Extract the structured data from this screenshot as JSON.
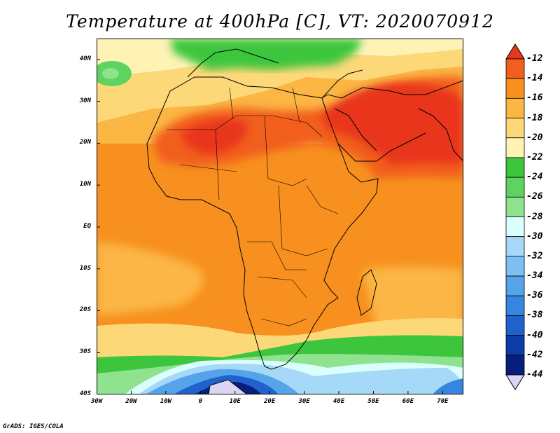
{
  "title": "Temperature at 400hPa [C], VT: 2020070912",
  "credit": "GrADS: IGES/COLA",
  "map": {
    "lon_range": [
      -30,
      76
    ],
    "lat_range": [
      -40,
      45
    ],
    "lat_ticks": [
      {
        "value": 40,
        "label": "40N"
      },
      {
        "value": 30,
        "label": "30N"
      },
      {
        "value": 20,
        "label": "20N"
      },
      {
        "value": 10,
        "label": "10N"
      },
      {
        "value": 0,
        "label": "EQ"
      },
      {
        "value": -10,
        "label": "10S"
      },
      {
        "value": -20,
        "label": "20S"
      },
      {
        "value": -30,
        "label": "30S"
      },
      {
        "value": -40,
        "label": "40S"
      }
    ],
    "lon_ticks": [
      {
        "value": -30,
        "label": "30W"
      },
      {
        "value": -20,
        "label": "20W"
      },
      {
        "value": -10,
        "label": "10W"
      },
      {
        "value": 0,
        "label": "0"
      },
      {
        "value": 10,
        "label": "10E"
      },
      {
        "value": 20,
        "label": "20E"
      },
      {
        "value": 30,
        "label": "30E"
      },
      {
        "value": 40,
        "label": "40E"
      },
      {
        "value": 50,
        "label": "50E"
      },
      {
        "value": 60,
        "label": "60E"
      },
      {
        "value": 70,
        "label": "70E"
      }
    ]
  },
  "colorbar": {
    "labels": [
      "-12",
      "-14",
      "-16",
      "-18",
      "-20",
      "-22",
      "-24",
      "-26",
      "-28",
      "-30",
      "-32",
      "-34",
      "-36",
      "-38",
      "-40",
      "-42",
      "-44"
    ],
    "colors": [
      "#e8361d",
      "#f25e1d",
      "#f7901e",
      "#fbb644",
      "#fdd878",
      "#fef3b5",
      "#3dc63d",
      "#5fd35f",
      "#8fe38f",
      "#d9ffff",
      "#a6d8f8",
      "#7dbff2",
      "#55a4ea",
      "#3686e0",
      "#1f62cc",
      "#0d3ea8",
      "#071f7a",
      "#dcd4f5"
    ],
    "top_arrow_color": "#e8361d",
    "bottom_arrow_color": "#dcd4f5"
  }
}
